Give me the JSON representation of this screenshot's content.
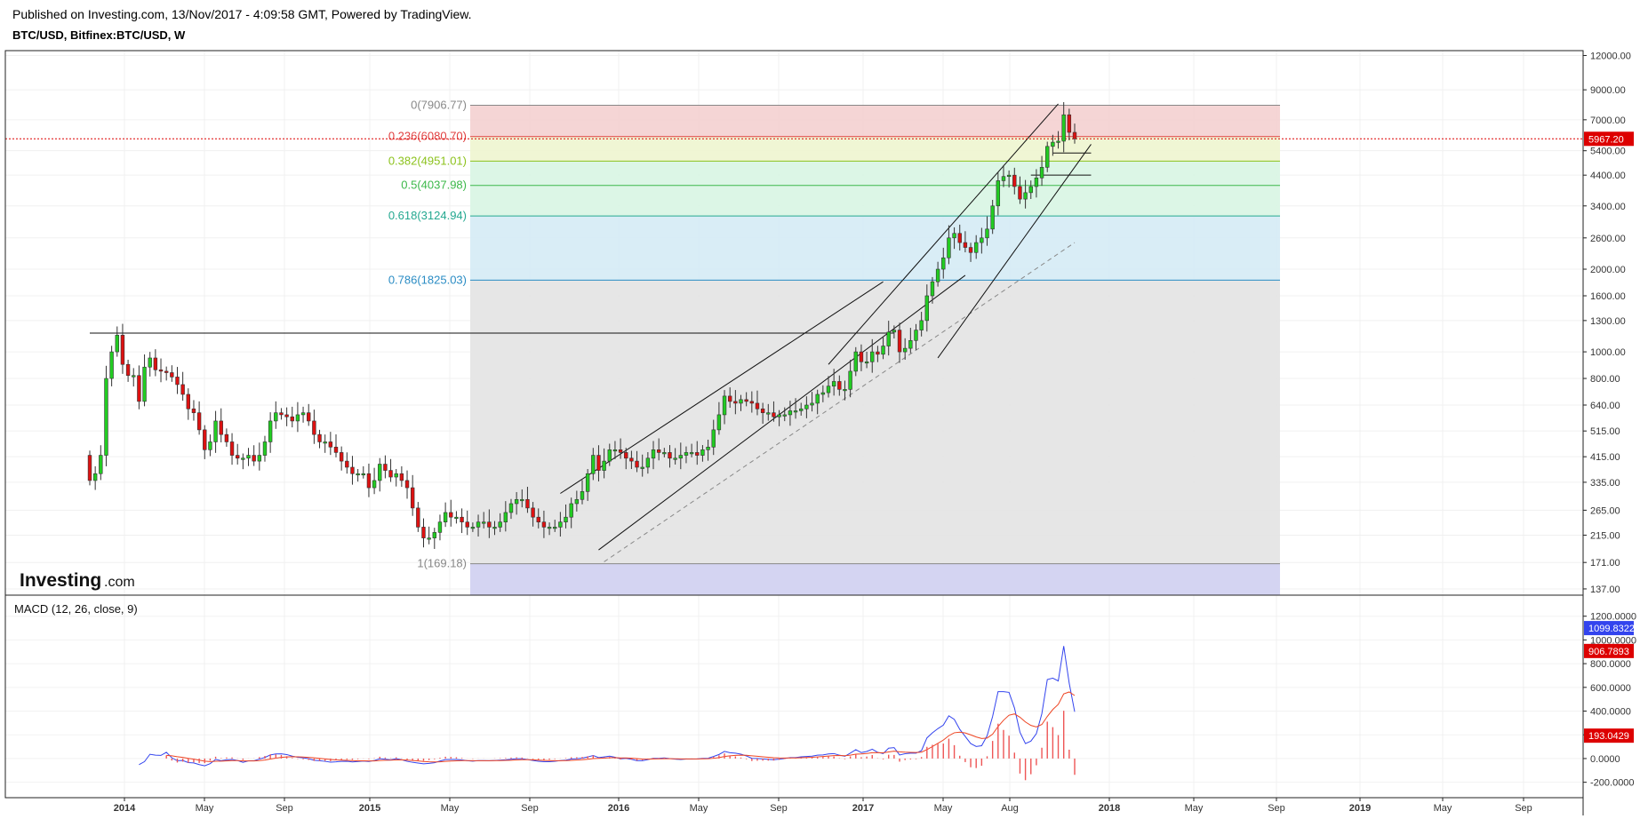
{
  "header": {
    "published": "Published on Investing.com, 13/Nov/2017 - 4:09:58 GMT, Powered by TradingView.",
    "symbol": "BTC/USD, Bitfinex:BTC/USD, W"
  },
  "logo": {
    "text_main": "Investing",
    "text_suffix": ".com"
  },
  "macd_label": "MACD (12, 26, close, 9)",
  "colors": {
    "up": "#22cc22",
    "down": "#dd1111",
    "macd_line": "#3344ee",
    "signal_line": "#ee4422",
    "histogram": "#ee5555",
    "price_line": "#dd0000",
    "fib_grey": "#e3e3e3",
    "fib_zone_top": "#f4d0d0",
    "fib_zone_yellow": "#eef5cf",
    "fib_zone_green": "#d8f5e3",
    "fib_zone_blue": "#d5ebf5",
    "fib_zone_bottom": "#d4d4f2"
  },
  "chart_data": [
    {
      "type": "candlestick",
      "title": "BTC/USD, Bitfinex:BTC/USD, W",
      "y_scale": "log",
      "ylim": [
        130,
        12500
      ],
      "price_axis_labels": [
        "12000.00",
        "9000.00",
        "7000.00",
        "5400.00",
        "4400.00",
        "3400.00",
        "2600.00",
        "2000.00",
        "1600.00",
        "1300.00",
        "1000.00",
        "800.00",
        "640.00",
        "515.00",
        "415.00",
        "335.00",
        "265.00",
        "215.00",
        "171.00",
        "137.00"
      ],
      "current_price_label": "5967.20",
      "current_price": 5967.2,
      "time_axis_labels": [
        "2014",
        "May",
        "Sep",
        "2015",
        "May",
        "Sep",
        "2016",
        "May",
        "Sep",
        "2017",
        "May",
        "Aug",
        "2018",
        "May",
        "Sep",
        "2019",
        "May",
        "Sep"
      ],
      "fibonacci_levels": [
        {
          "label": "0(7906.77)",
          "value": 7906.77,
          "color": "#888888"
        },
        {
          "label": "0.236(6080.70)",
          "value": 6080.7,
          "color": "#e04040"
        },
        {
          "label": "0.382(4951.01)",
          "value": 4951.01,
          "color": "#8cc21c"
        },
        {
          "label": "0.5(4037.98)",
          "value": 4037.98,
          "color": "#3cb84a"
        },
        {
          "label": "0.618(3124.94)",
          "value": 3124.94,
          "color": "#24a890"
        },
        {
          "label": "0.786(1825.03)",
          "value": 1825.03,
          "color": "#2a8cc4"
        },
        {
          "label": "1(169.18)",
          "value": 169.18,
          "color": "#888888"
        }
      ],
      "weekly_close": [
        340,
        360,
        420,
        800,
        1000,
        1150,
        900,
        820,
        820,
        660,
        880,
        950,
        860,
        850,
        840,
        810,
        760,
        700,
        620,
        600,
        520,
        440,
        470,
        560,
        500,
        470,
        420,
        410,
        410,
        420,
        400,
        420,
        470,
        560,
        600,
        590,
        580,
        560,
        590,
        600,
        560,
        500,
        470,
        470,
        450,
        430,
        400,
        380,
        360,
        360,
        360,
        320,
        340,
        390,
        370,
        350,
        360,
        340,
        320,
        270,
        230,
        210,
        210,
        220,
        240,
        260,
        250,
        250,
        240,
        230,
        230,
        240,
        240,
        230,
        230,
        240,
        260,
        280,
        290,
        290,
        270,
        250,
        240,
        230,
        230,
        230,
        240,
        250,
        280,
        290,
        310,
        360,
        420,
        370,
        400,
        440,
        440,
        430,
        410,
        400,
        380,
        380,
        410,
        440,
        430,
        430,
        410,
        410,
        420,
        430,
        430,
        420,
        440,
        450,
        520,
        590,
        690,
        660,
        650,
        670,
        660,
        650,
        620,
        600,
        600,
        580,
        590,
        590,
        610,
        610,
        620,
        640,
        650,
        700,
        710,
        750,
        780,
        730,
        730,
        850,
        1000,
        920,
        920,
        1000,
        980,
        1050,
        1180,
        1200,
        1000,
        1030,
        1100,
        1200,
        1300,
        1600,
        1800,
        2000,
        2200,
        2600,
        2700,
        2500,
        2400,
        2300,
        2500,
        2600,
        2800,
        3400,
        4200,
        4350,
        4400,
        4000,
        3600,
        3800,
        4000,
        4300,
        4700,
        5600,
        5800,
        5850,
        7300,
        6300,
        5967
      ]
    },
    {
      "type": "line",
      "title": "MACD (12, 26, close, 9)",
      "axis_labels": [
        "1200.0000",
        "1000.0000",
        "800.0000",
        "600.0000",
        "400.0000",
        "200.0000",
        "0.0000",
        "-200.0000"
      ],
      "ylim": [
        -330,
        1370
      ],
      "values": {
        "macd": "1099.8322",
        "signal": "906.7893",
        "histogram": "193.0429"
      }
    }
  ]
}
